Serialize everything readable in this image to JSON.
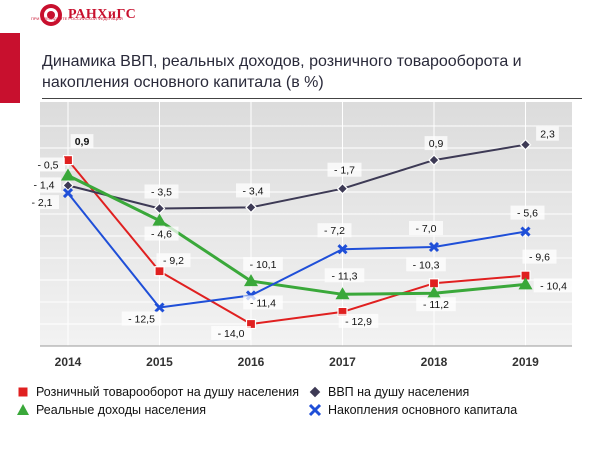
{
  "header": {
    "logo_text": "РАНХиГС",
    "logo_subtext": "ПРИ ПРЕЗИДЕНТЕ РОССИЙСКОЙ ФЕДЕРАЦИИ",
    "title_line1": "Динамика ВВП, реальных доходов, розничного товарооборота и",
    "title_line2": "накопления основного капитала (в %)"
  },
  "colors": {
    "retail": "#e02020",
    "gdp": "#3d3a55",
    "income": "#3aa83a",
    "investment": "#1f4fd8",
    "accent": "#c8102e"
  },
  "chart_data": {
    "type": "line",
    "title": "Динамика ВВП, реальных доходов, розничного товарооборота и накопления основного капитала (в %)",
    "x": [
      "2014",
      "2015",
      "2016",
      "2017",
      "2018",
      "2019"
    ],
    "ylim": [
      -16,
      4
    ],
    "grid": true,
    "legend_position": "bottom",
    "series": [
      {
        "key": "retail",
        "name": "Розничный товарооборот на душу населения",
        "marker": "square",
        "values": [
          0.9,
          -9.2,
          -14.0,
          -12.9,
          -10.3,
          -9.6
        ],
        "labels": [
          "0,9",
          "- 9,2",
          "- 14,0",
          "- 12,9",
          "- 10,3",
          "- 9,6"
        ]
      },
      {
        "key": "gdp",
        "name": "ВВП на душу населения",
        "marker": "diamond",
        "values": [
          -1.4,
          -3.5,
          -3.4,
          -1.7,
          0.9,
          2.3
        ],
        "labels": [
          "- 1,4",
          "- 3,5",
          "- 3,4",
          "- 1,7",
          "0,9",
          "2,3"
        ]
      },
      {
        "key": "income",
        "name": "Реальные доходы населения",
        "marker": "triangle",
        "values": [
          -0.5,
          -4.6,
          -10.1,
          -11.3,
          -11.2,
          -10.4
        ],
        "labels": [
          "- 0,5",
          "- 4,6",
          "- 10,1",
          "- 11,3",
          "- 11,2",
          "- 10,4"
        ]
      },
      {
        "key": "investment",
        "name": "Накопления основного капитала",
        "marker": "cross",
        "values": [
          -2.1,
          -12.5,
          -11.4,
          -7.2,
          -7.0,
          -5.6
        ],
        "labels": [
          "- 2,1",
          "- 12,5",
          "- 11,4",
          "- 7,2",
          "- 7,0",
          "- 5,6"
        ]
      }
    ]
  }
}
